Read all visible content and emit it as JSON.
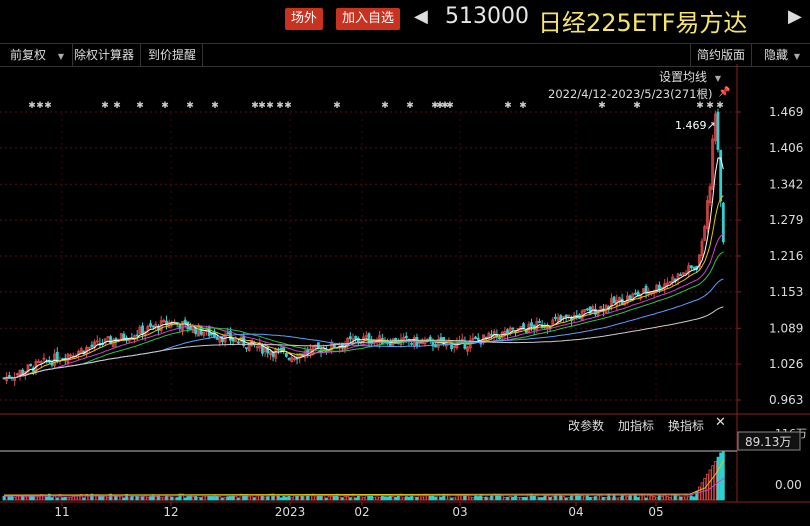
{
  "header": {
    "badge_offexchange": "场外",
    "badge_add": "加入自选",
    "code": "513000",
    "name": "日经225ETF易方达",
    "left_arrow": "◀",
    "right_arrow": "▶"
  },
  "toolbar": {
    "fq": "前复权",
    "fq_arrow": "▼",
    "calc": "除权计算器",
    "alert": "到价提醒",
    "simple": "简约版面",
    "hide": "隐藏",
    "hide_arrow": "▼"
  },
  "ma_settings": "设置均线",
  "ma_arrow": "▼",
  "range_label": "2022/4/12-2023/5/23(271根)",
  "pin_icon": "pin-icon",
  "lower": {
    "change_params": "改参数",
    "add_indicator": "加指标",
    "switch_indicator": "换指标",
    "close": "✕"
  },
  "chart_data": {
    "type": "candlestick",
    "price_ticks": [
      "1.469",
      "1.406",
      "1.342",
      "1.279",
      "1.216",
      "1.153",
      "1.089",
      "1.026",
      "0.963"
    ],
    "price_range": [
      0.963,
      1.469
    ],
    "peak_label": "1.469",
    "vol_ticks": [
      "116万",
      "89.13万",
      "0.00"
    ],
    "x_ticks": [
      "11",
      "12",
      "2023",
      "02",
      "03",
      "04",
      "05"
    ],
    "approx_trend": [
      {
        "x": "start",
        "close": 1.0
      },
      {
        "x": "11",
        "close": 1.04
      },
      {
        "x": "12",
        "close": 1.1
      },
      {
        "x": "2023",
        "close": 1.04
      },
      {
        "x": "02",
        "close": 1.07
      },
      {
        "x": "03",
        "close": 1.06
      },
      {
        "x": "04",
        "close": 1.11
      },
      {
        "x": "05",
        "close": 1.16
      },
      {
        "x": "peak",
        "close": 1.469
      },
      {
        "x": "end",
        "close": 1.22
      }
    ]
  },
  "colors": {
    "up": "#e34848",
    "down": "#2fd1d1",
    "ma1": "#ffffff",
    "ma2": "#e0c600",
    "ma3": "#d040d0",
    "ma4": "#27c93f",
    "ma5": "#5aa0ff",
    "ma6": "#cccccc"
  }
}
